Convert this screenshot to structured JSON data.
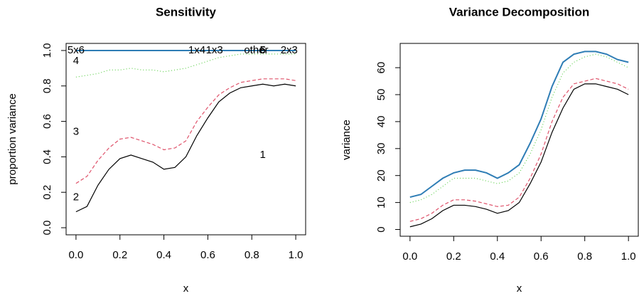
{
  "chart_data": [
    {
      "type": "line",
      "title": "Sensitivity",
      "x_label": "x",
      "y_label": "proportion variance",
      "x": [
        0,
        0.05,
        0.1,
        0.15,
        0.2,
        0.25,
        0.3,
        0.35,
        0.4,
        0.45,
        0.5,
        0.55,
        0.6,
        0.65,
        0.7,
        0.75,
        0.8,
        0.85,
        0.9,
        0.95,
        1
      ],
      "xlim": [
        -0.045,
        1.045
      ],
      "xticks": [
        {
          "value": 0,
          "label": "0.0"
        },
        {
          "value": 0.2,
          "label": "0.2"
        },
        {
          "value": 0.4,
          "label": "0.4"
        },
        {
          "value": 0.6,
          "label": "0.6"
        },
        {
          "value": 0.8,
          "label": "0.8"
        },
        {
          "value": 1,
          "label": "1.0"
        }
      ],
      "ylim": [
        -0.04,
        1.04
      ],
      "yticks": [
        {
          "value": 0,
          "label": "0.0"
        },
        {
          "value": 0.2,
          "label": "0.2"
        },
        {
          "value": 0.4,
          "label": "0.4"
        },
        {
          "value": 0.6,
          "label": "0.6"
        },
        {
          "value": 0.8,
          "label": "0.8"
        },
        {
          "value": 1,
          "label": "1.0"
        }
      ],
      "series": [
        {
          "color": "#000000",
          "dash": "solid",
          "values": [
            0.09,
            0.12,
            0.24,
            0.33,
            0.39,
            0.41,
            0.39,
            0.37,
            0.33,
            0.34,
            0.4,
            0.52,
            0.62,
            0.71,
            0.76,
            0.79,
            0.8,
            0.81,
            0.8,
            0.81,
            0.8
          ]
        },
        {
          "color": "#DF536B",
          "dash": "dashed",
          "values": [
            0.25,
            0.29,
            0.38,
            0.45,
            0.5,
            0.51,
            0.49,
            0.47,
            0.44,
            0.45,
            0.49,
            0.6,
            0.68,
            0.75,
            0.79,
            0.82,
            0.83,
            0.84,
            0.84,
            0.84,
            0.83
          ]
        },
        {
          "color": "#61D04F",
          "dash": "dotted",
          "values": [
            0.85,
            0.86,
            0.87,
            0.89,
            0.89,
            0.9,
            0.89,
            0.89,
            0.88,
            0.89,
            0.9,
            0.92,
            0.94,
            0.96,
            0.97,
            0.98,
            0.98,
            0.98,
            0.98,
            0.98,
            0.98
          ]
        },
        {
          "color": "#2E7DB5",
          "dash": "solid",
          "values": [
            1,
            1,
            1,
            1,
            1,
            1,
            1,
            1,
            1,
            1,
            1,
            1,
            1,
            1,
            1,
            1,
            1,
            1,
            1,
            1,
            1
          ]
        }
      ],
      "annotations": [
        {
          "text": "1",
          "x": 0.85,
          "y": 0.41
        },
        {
          "text": "2",
          "x": 0,
          "y": 0.17
        },
        {
          "text": "3",
          "x": 0,
          "y": 0.54
        },
        {
          "text": "4",
          "x": 0,
          "y": 0.94
        },
        {
          "text": "5x6",
          "x": 0,
          "y": 1
        },
        {
          "text": "1x4",
          "x": 0.55,
          "y": 1
        },
        {
          "text": "1x3",
          "x": 0.63,
          "y": 1
        },
        {
          "text": "other",
          "x": 0.82,
          "y": 1
        },
        {
          "text": "5",
          "x": 0.85,
          "y": 1
        },
        {
          "text": "6",
          "x": 0.85,
          "y": 1
        },
        {
          "text": "2x3",
          "x": 0.97,
          "y": 1
        }
      ]
    },
    {
      "type": "line",
      "title": "Variance Decomposition",
      "x_label": "x",
      "y_label": "variance",
      "x": [
        0,
        0.05,
        0.1,
        0.15,
        0.2,
        0.25,
        0.3,
        0.35,
        0.4,
        0.45,
        0.5,
        0.55,
        0.6,
        0.65,
        0.7,
        0.75,
        0.8,
        0.85,
        0.9,
        0.95,
        1
      ],
      "xlim": [
        -0.045,
        1.045
      ],
      "xticks": [
        {
          "value": 0,
          "label": "0.0"
        },
        {
          "value": 0.2,
          "label": "0.2"
        },
        {
          "value": 0.4,
          "label": "0.4"
        },
        {
          "value": 0.6,
          "label": "0.6"
        },
        {
          "value": 0.8,
          "label": "0.8"
        },
        {
          "value": 1,
          "label": "1.0"
        }
      ],
      "ylim": [
        -2.5,
        69
      ],
      "yticks": [
        0,
        10,
        20,
        30,
        40,
        50,
        60
      ],
      "series": [
        {
          "color": "#000000",
          "dash": "solid",
          "values": [
            1,
            2,
            4,
            7,
            9,
            9,
            8.5,
            7.5,
            6,
            7,
            10,
            17,
            25,
            36,
            45,
            52,
            54,
            54,
            53,
            52,
            50
          ]
        },
        {
          "color": "#DF536B",
          "dash": "dashed",
          "values": [
            3,
            4,
            6,
            9,
            11,
            11,
            10.5,
            9.5,
            8.5,
            9,
            12,
            19,
            28,
            40,
            49,
            54,
            55,
            56,
            55,
            54,
            52
          ]
        },
        {
          "color": "#61D04F",
          "dash": "dotted",
          "values": [
            10,
            11,
            13,
            16,
            19,
            19,
            19,
            18,
            17,
            18,
            21,
            28,
            37,
            49,
            58,
            62,
            64,
            65,
            64,
            62,
            60
          ]
        },
        {
          "color": "#2E7DB5",
          "dash": "solid",
          "values": [
            12,
            13,
            16,
            19,
            21,
            22,
            22,
            21,
            19,
            21,
            24,
            32,
            41,
            53,
            62,
            65,
            66,
            66,
            65,
            63,
            62
          ]
        }
      ]
    }
  ]
}
